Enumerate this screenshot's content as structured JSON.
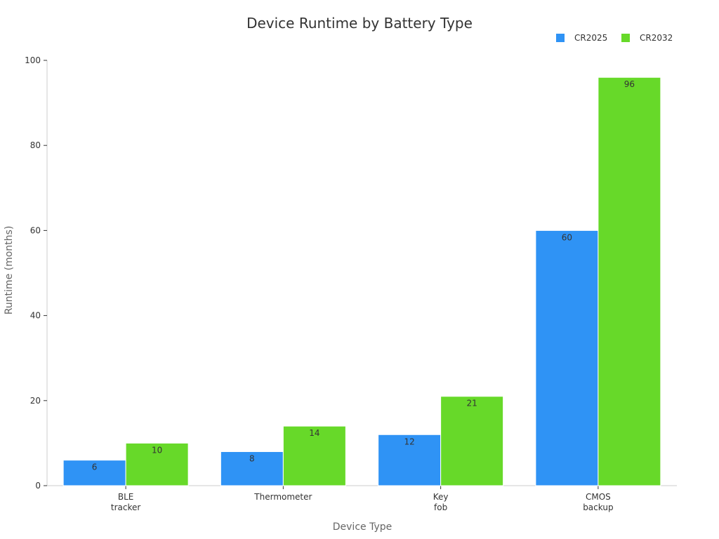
{
  "chart_data": {
    "type": "bar",
    "title": "Device Runtime by Battery Type",
    "xlabel": "Device Type",
    "ylabel": "Runtime (months)",
    "categories": [
      [
        "BLE",
        "tracker"
      ],
      [
        "Thermometer"
      ],
      [
        "Key",
        "fob"
      ],
      [
        "CMOS",
        "backup"
      ]
    ],
    "series": [
      {
        "name": "CR2025",
        "color": "#2f93f5",
        "values": [
          6,
          8,
          12,
          60
        ]
      },
      {
        "name": "CR2032",
        "color": "#67d929",
        "values": [
          10,
          14,
          21,
          96
        ]
      }
    ],
    "ylim": [
      0,
      100
    ],
    "yticks": [
      0,
      20,
      40,
      60,
      80,
      100
    ],
    "grid": false,
    "legend_position": "top-right"
  }
}
